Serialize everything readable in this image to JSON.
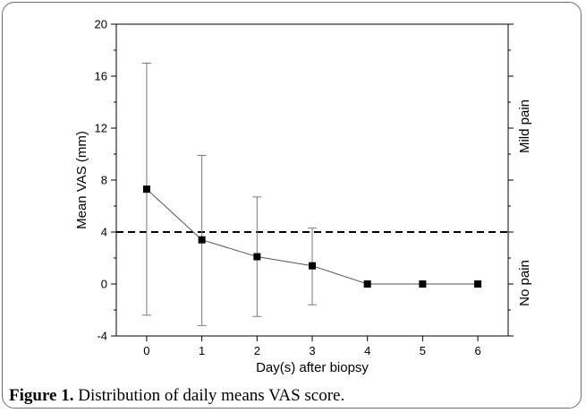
{
  "caption": {
    "label": "Figure 1.",
    "text": "Distribution of daily means VAS score."
  },
  "chart_data": {
    "type": "line",
    "xlabel": "Day(s) after biopsy",
    "ylabel": "Mean VAS (mm)",
    "x": [
      0,
      1,
      2,
      3,
      4,
      5,
      6
    ],
    "y": [
      7.3,
      3.4,
      2.1,
      1.4,
      0,
      0,
      0
    ],
    "error_low": [
      -2.4,
      -3.2,
      -2.5,
      -1.6,
      0,
      0,
      0
    ],
    "error_high": [
      17.0,
      9.9,
      6.7,
      4.3,
      0,
      0,
      0
    ],
    "xlim": [
      -0.55,
      6.55
    ],
    "ylim": [
      -4,
      20
    ],
    "xticks": [
      "0",
      "1",
      "2",
      "3",
      "4",
      "5",
      "6"
    ],
    "yticks": [
      "-4",
      "0",
      "4",
      "8",
      "12",
      "16",
      "20"
    ],
    "threshold": 4,
    "right_labels": [
      "Mild pain",
      "No pain"
    ],
    "series_color": "#000000",
    "grid": false
  }
}
